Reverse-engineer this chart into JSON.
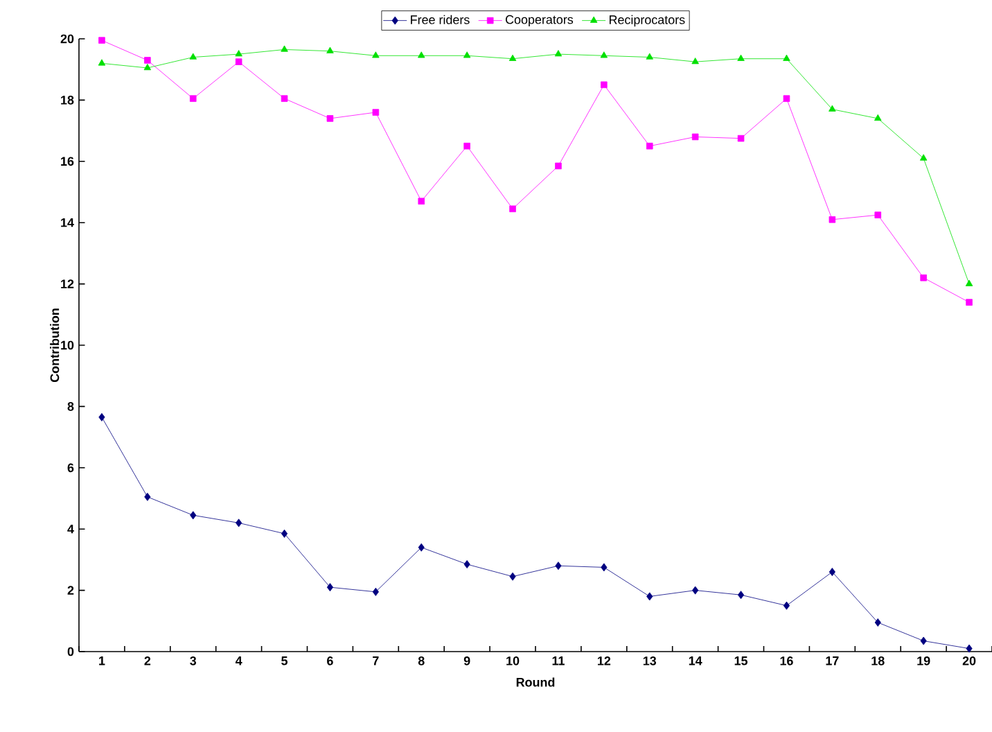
{
  "chart_data": {
    "type": "line",
    "xlabel": "Round",
    "ylabel": "Contribution",
    "categories": [
      "1",
      "2",
      "3",
      "4",
      "5",
      "6",
      "7",
      "8",
      "9",
      "10",
      "11",
      "12",
      "13",
      "14",
      "15",
      "16",
      "17",
      "18",
      "19",
      "20"
    ],
    "ylim": [
      0,
      20
    ],
    "yticks": [
      0,
      2,
      4,
      6,
      8,
      10,
      12,
      14,
      16,
      18,
      20
    ],
    "grid": false,
    "legend": "top",
    "line_style": "solid",
    "series": [
      {
        "name": "Free riders",
        "color": "#000080",
        "marker": "diamond",
        "values": [
          7.65,
          5.05,
          4.45,
          4.2,
          3.85,
          2.1,
          1.95,
          3.4,
          2.85,
          2.45,
          2.8,
          2.75,
          1.8,
          2.0,
          1.85,
          1.5,
          2.6,
          0.95,
          0.35,
          0.1
        ]
      },
      {
        "name": "Cooperators",
        "color": "#ff00ff",
        "marker": "square",
        "values": [
          19.95,
          19.3,
          18.05,
          19.25,
          18.05,
          17.4,
          17.6,
          14.7,
          16.5,
          14.45,
          15.85,
          18.5,
          16.5,
          16.8,
          16.75,
          18.05,
          14.1,
          14.25,
          12.2,
          11.4
        ]
      },
      {
        "name": "Reciprocators",
        "color": "#00e000",
        "marker": "triangle",
        "values": [
          19.2,
          19.05,
          19.4,
          19.5,
          19.65,
          19.6,
          19.45,
          19.45,
          19.45,
          19.35,
          19.5,
          19.45,
          19.4,
          19.25,
          19.35,
          19.35,
          17.7,
          17.4,
          16.1,
          12.0
        ]
      }
    ]
  }
}
